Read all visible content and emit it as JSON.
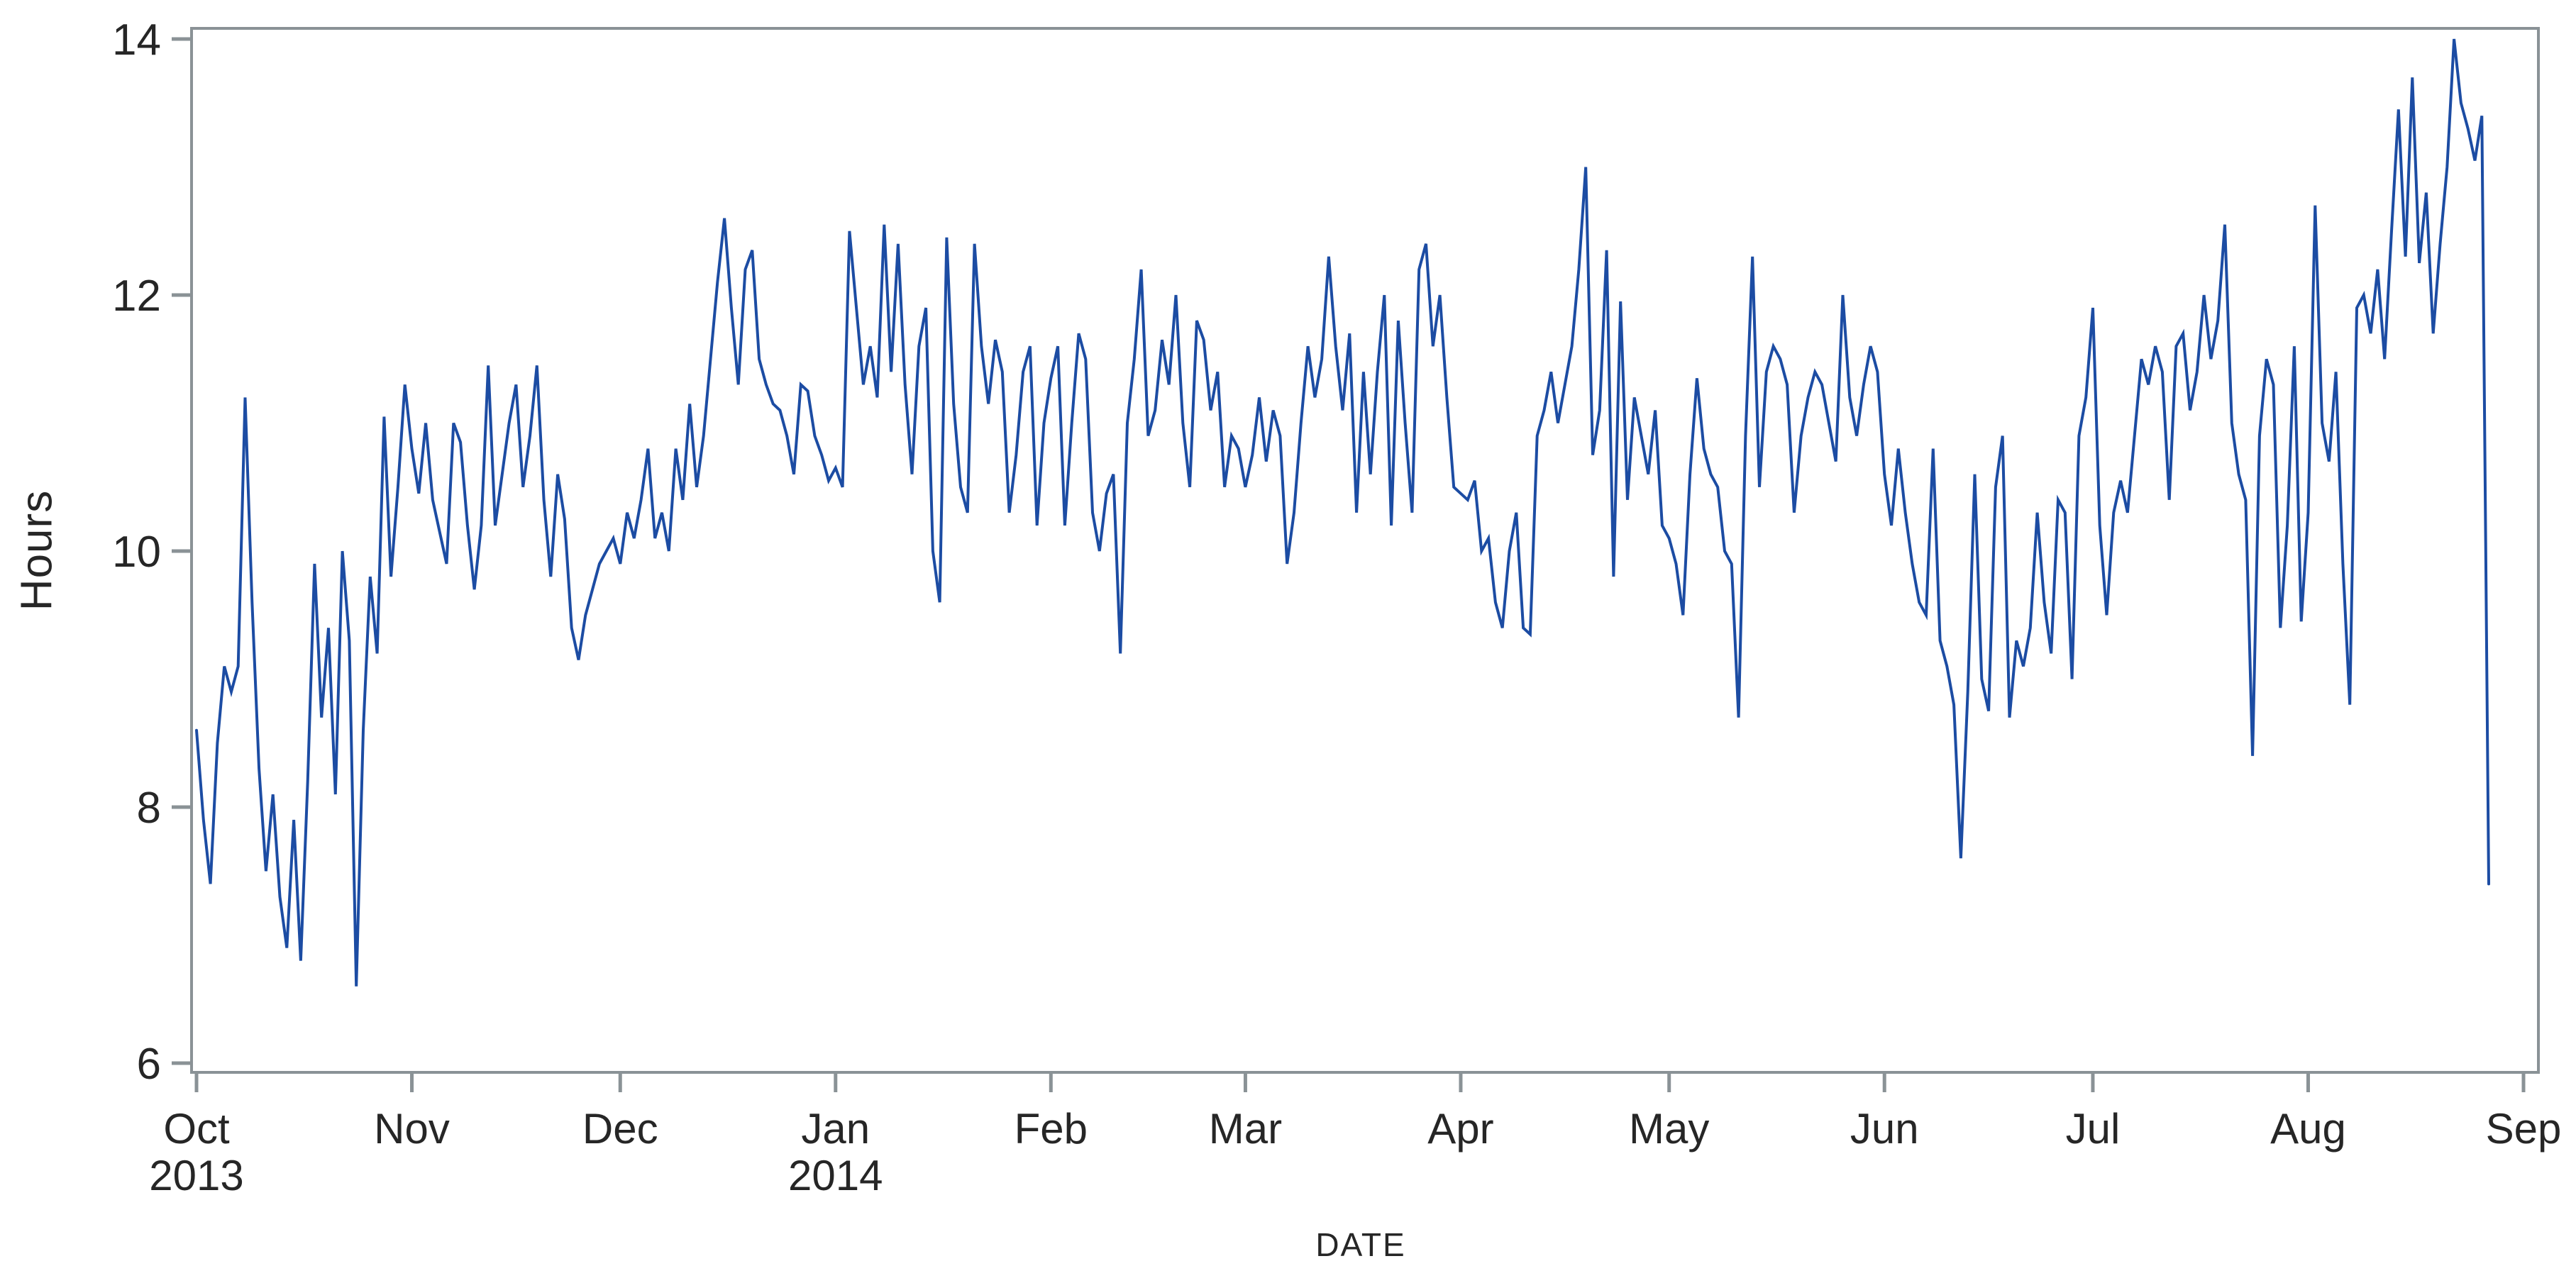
{
  "chart_data": {
    "type": "line",
    "title": "",
    "xlabel": "DATE",
    "ylabel": "Hours",
    "frequency": "daily",
    "start_date": "2013-10-01",
    "end_date": "2014-08-27",
    "grid": false,
    "legend": false,
    "line_color": "#1C4CA3",
    "axis_color": "#8A9296",
    "text_color": "#262626",
    "y_ticks": [
      6,
      8,
      10,
      12,
      14
    ],
    "y_tick_labels": [
      "6",
      "8",
      "10",
      "12",
      "14"
    ],
    "ylim": [
      5.93,
      14.08
    ],
    "x_ticks": [
      {
        "label": "Oct",
        "year": "2013",
        "date": "2013-10-01"
      },
      {
        "label": "Nov",
        "year": "",
        "date": "2013-11-01"
      },
      {
        "label": "Dec",
        "year": "",
        "date": "2013-12-01"
      },
      {
        "label": "Jan",
        "year": "2014",
        "date": "2014-01-01"
      },
      {
        "label": "Feb",
        "year": "",
        "date": "2014-02-01"
      },
      {
        "label": "Mar",
        "year": "",
        "date": "2014-03-01"
      },
      {
        "label": "Apr",
        "year": "",
        "date": "2014-04-01"
      },
      {
        "label": "May",
        "year": "",
        "date": "2014-05-01"
      },
      {
        "label": "Jun",
        "year": "",
        "date": "2014-06-01"
      },
      {
        "label": "Jul",
        "year": "",
        "date": "2014-07-01"
      },
      {
        "label": "Aug",
        "year": "",
        "date": "2014-08-01"
      },
      {
        "label": "Sep",
        "year": "",
        "date": "2014-09-01"
      }
    ],
    "series": [
      {
        "name": "Hours",
        "values": [
          8.6,
          7.9,
          7.4,
          8.5,
          9.1,
          8.9,
          9.1,
          11.2,
          9.6,
          8.3,
          7.5,
          8.1,
          7.3,
          6.9,
          7.9,
          6.8,
          8.2,
          9.9,
          8.7,
          9.4,
          8.1,
          10.0,
          9.3,
          6.6,
          8.6,
          9.8,
          9.2,
          11.05,
          9.8,
          10.5,
          11.3,
          10.8,
          10.45,
          11.0,
          10.4,
          10.15,
          9.9,
          11.0,
          10.85,
          10.2,
          9.7,
          10.2,
          11.45,
          10.2,
          10.6,
          11.0,
          11.3,
          10.5,
          10.9,
          11.45,
          10.4,
          9.8,
          10.6,
          10.25,
          9.4,
          9.15,
          9.5,
          9.7,
          9.9,
          10.0,
          10.1,
          9.9,
          10.3,
          10.1,
          10.4,
          10.8,
          10.1,
          10.3,
          10.0,
          10.8,
          10.4,
          11.15,
          10.5,
          10.9,
          11.5,
          12.1,
          12.6,
          11.9,
          11.3,
          12.2,
          12.35,
          11.5,
          11.3,
          11.15,
          11.1,
          10.9,
          10.6,
          11.3,
          11.25,
          10.9,
          10.75,
          10.55,
          10.65,
          10.5,
          12.5,
          11.9,
          11.3,
          11.6,
          11.2,
          12.55,
          11.4,
          12.4,
          11.3,
          10.6,
          11.6,
          11.9,
          10.0,
          9.6,
          12.45,
          11.15,
          10.5,
          10.3,
          12.4,
          11.6,
          11.15,
          11.65,
          11.4,
          10.3,
          10.75,
          11.4,
          11.6,
          10.2,
          11.0,
          11.35,
          11.6,
          10.2,
          11.0,
          11.7,
          11.5,
          10.3,
          10.0,
          10.45,
          10.6,
          9.2,
          11.0,
          11.5,
          12.2,
          10.9,
          11.1,
          11.65,
          11.3,
          12.0,
          11.0,
          10.5,
          11.8,
          11.65,
          11.1,
          11.4,
          10.5,
          10.9,
          10.8,
          10.5,
          10.75,
          11.2,
          10.7,
          11.1,
          10.9,
          9.9,
          10.3,
          11.0,
          11.6,
          11.2,
          11.5,
          12.3,
          11.6,
          11.1,
          11.7,
          10.3,
          11.4,
          10.6,
          11.4,
          12.0,
          10.2,
          11.8,
          11.0,
          10.3,
          12.2,
          12.4,
          11.6,
          12.0,
          11.2,
          10.5,
          10.45,
          10.4,
          10.55,
          10.0,
          10.1,
          9.6,
          9.4,
          10.0,
          10.3,
          9.4,
          9.35,
          10.9,
          11.1,
          11.4,
          11.0,
          11.3,
          11.6,
          12.2,
          13.0,
          10.75,
          11.1,
          12.35,
          9.8,
          11.95,
          10.4,
          11.2,
          10.9,
          10.6,
          11.1,
          10.2,
          10.1,
          9.9,
          9.5,
          10.6,
          11.35,
          10.8,
          10.6,
          10.5,
          10.0,
          9.9,
          8.7,
          10.9,
          12.3,
          10.5,
          11.4,
          11.6,
          11.5,
          11.3,
          10.3,
          10.9,
          11.2,
          11.4,
          11.3,
          11.0,
          10.7,
          12.0,
          11.2,
          10.9,
          11.3,
          11.6,
          11.4,
          10.6,
          10.2,
          10.8,
          10.3,
          9.9,
          9.6,
          9.5,
          10.8,
          9.3,
          9.1,
          8.8,
          7.6,
          8.9,
          10.6,
          9.0,
          8.75,
          10.5,
          10.9,
          8.7,
          9.3,
          9.1,
          9.4,
          10.3,
          9.6,
          9.2,
          10.4,
          10.3,
          9.0,
          10.9,
          11.2,
          11.9,
          10.2,
          9.5,
          10.3,
          10.55,
          10.3,
          10.9,
          11.5,
          11.3,
          11.6,
          11.4,
          10.4,
          11.6,
          11.7,
          11.1,
          11.4,
          12.0,
          11.5,
          11.8,
          12.55,
          11.0,
          10.6,
          10.4,
          8.4,
          10.9,
          11.5,
          11.3,
          9.4,
          10.2,
          11.6,
          9.45,
          10.3,
          12.7,
          11.0,
          10.7,
          11.4,
          9.9,
          8.8,
          11.9,
          12.0,
          11.7,
          12.2,
          11.5,
          12.5,
          13.45,
          12.3,
          13.7,
          12.25,
          12.8,
          11.7,
          12.4,
          13.0,
          14.0,
          13.5,
          13.3,
          13.05,
          13.4,
          7.4
        ]
      }
    ]
  }
}
